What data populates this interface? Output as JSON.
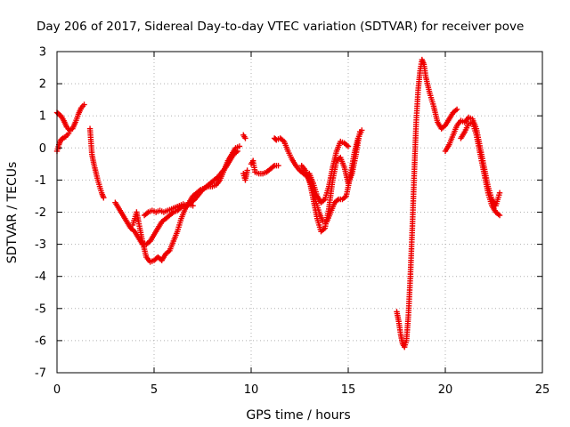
{
  "chart_data": {
    "type": "scatter",
    "title": "Day 206 of 2017, Sidereal Day-to-day VTEC variation (SDTVAR) for receiver pove",
    "xlabel": "GPS time / hours",
    "ylabel": "SDTVAR / TECUs",
    "xlim": [
      0,
      25
    ],
    "ylim": [
      -7,
      3
    ],
    "xticks": [
      0,
      5,
      10,
      15,
      20,
      25
    ],
    "yticks": [
      -7,
      -6,
      -5,
      -4,
      -3,
      -2,
      -1,
      0,
      1,
      2,
      3
    ],
    "grid": true,
    "marker": "+",
    "marker_color": "#ee0000",
    "series": [
      {
        "name": "segment-1",
        "x": [
          0.0,
          0.1,
          0.2,
          0.35,
          0.5,
          0.65,
          0.8,
          0.95,
          1.1,
          1.25,
          1.4
        ],
        "y": [
          1.1,
          1.05,
          1.0,
          0.85,
          0.65,
          0.55,
          0.6,
          0.8,
          1.05,
          1.25,
          1.35
        ]
      },
      {
        "name": "segment-2",
        "x": [
          0.0,
          0.1,
          0.2,
          0.3,
          0.45,
          0.6
        ],
        "y": [
          -0.1,
          0.1,
          0.25,
          0.3,
          0.35,
          0.45
        ]
      },
      {
        "name": "segment-3",
        "x": [
          1.7,
          1.75,
          1.8,
          1.9,
          2.0,
          2.1,
          2.2,
          2.3,
          2.4
        ],
        "y": [
          0.6,
          0.2,
          -0.2,
          -0.5,
          -0.75,
          -1.0,
          -1.2,
          -1.4,
          -1.55
        ]
      },
      {
        "name": "segment-4",
        "x": [
          3.0,
          3.2,
          3.4,
          3.6,
          3.8,
          4.0,
          4.2,
          4.4,
          4.6,
          4.8,
          5.0,
          5.2,
          5.4,
          5.6,
          5.8,
          6.0,
          6.2,
          6.4,
          6.6,
          6.8,
          7.0
        ],
        "y": [
          -1.7,
          -1.9,
          -2.1,
          -2.3,
          -2.5,
          -2.6,
          -2.8,
          -3.0,
          -3.0,
          -2.9,
          -2.7,
          -2.5,
          -2.3,
          -2.2,
          -2.1,
          -2.0,
          -1.95,
          -1.85,
          -1.8,
          -1.75,
          -1.8
        ]
      },
      {
        "name": "segment-5",
        "x": [
          3.9,
          4.0,
          4.1,
          4.2,
          4.4,
          4.6,
          4.8,
          5.0,
          5.2,
          5.4,
          5.6,
          5.8,
          6.0,
          6.2,
          6.4,
          6.6,
          6.8,
          7.0,
          7.2,
          7.4,
          7.6,
          7.8,
          8.0,
          8.2,
          8.4,
          8.6,
          8.8,
          9.0,
          9.2,
          9.4
        ],
        "y": [
          -2.4,
          -2.2,
          -2.0,
          -2.3,
          -2.9,
          -3.4,
          -3.55,
          -3.5,
          -3.4,
          -3.5,
          -3.3,
          -3.2,
          -2.9,
          -2.6,
          -2.2,
          -1.9,
          -1.7,
          -1.5,
          -1.4,
          -1.3,
          -1.25,
          -1.2,
          -1.2,
          -1.15,
          -1.0,
          -0.7,
          -0.4,
          -0.2,
          0.0,
          0.05
        ]
      },
      {
        "name": "segment-6",
        "x": [
          4.5,
          4.7,
          4.9,
          5.1,
          5.3,
          5.5,
          5.7,
          5.9,
          6.1,
          6.3,
          6.5,
          6.7,
          6.9,
          7.1,
          7.3,
          7.5,
          7.7,
          7.9,
          8.1,
          8.3,
          8.5,
          8.7,
          8.9,
          9.1,
          9.3
        ],
        "y": [
          -2.1,
          -2.0,
          -1.95,
          -2.0,
          -1.95,
          -2.0,
          -1.95,
          -1.9,
          -1.85,
          -1.8,
          -1.75,
          -1.8,
          -1.7,
          -1.6,
          -1.45,
          -1.3,
          -1.2,
          -1.1,
          -1.0,
          -0.9,
          -0.75,
          -0.6,
          -0.4,
          -0.2,
          -0.1
        ]
      },
      {
        "name": "segment-7",
        "x": [
          9.6,
          9.7
        ],
        "y": [
          0.4,
          0.3
        ]
      },
      {
        "name": "segment-8",
        "x": [
          9.6,
          9.7,
          9.8
        ],
        "y": [
          -0.8,
          -1.0,
          -0.7
        ]
      },
      {
        "name": "segment-9",
        "x": [
          10.0,
          10.1,
          10.2,
          10.4,
          10.6,
          10.8,
          11.0,
          11.2,
          11.4
        ],
        "y": [
          -0.5,
          -0.4,
          -0.75,
          -0.8,
          -0.8,
          -0.75,
          -0.65,
          -0.55,
          -0.55
        ]
      },
      {
        "name": "segment-10",
        "x": [
          11.2,
          11.3,
          11.5,
          11.7,
          11.9,
          12.1,
          12.3,
          12.5,
          12.7,
          12.9,
          13.1,
          13.3,
          13.5,
          13.7,
          13.9,
          14.1,
          14.3,
          14.5,
          14.7,
          14.9,
          15.1,
          15.3,
          15.5,
          15.7
        ],
        "y": [
          0.3,
          0.25,
          0.3,
          0.2,
          -0.1,
          -0.35,
          -0.55,
          -0.7,
          -0.8,
          -0.9,
          -1.2,
          -1.6,
          -2.0,
          -2.3,
          -2.3,
          -2.0,
          -1.7,
          -1.6,
          -1.6,
          -1.5,
          -0.9,
          -0.2,
          0.3,
          0.55
        ]
      },
      {
        "name": "segment-11",
        "x": [
          12.6,
          12.8,
          13.0,
          13.2,
          13.4,
          13.6,
          13.8,
          14.0,
          14.2,
          14.4,
          14.6,
          14.8,
          15.0,
          15.2,
          15.4,
          15.6
        ],
        "y": [
          -0.55,
          -0.7,
          -1.0,
          -1.6,
          -2.2,
          -2.6,
          -2.5,
          -1.9,
          -1.0,
          -0.4,
          -0.3,
          -0.6,
          -1.1,
          -0.8,
          -0.2,
          0.5
        ]
      },
      {
        "name": "segment-12",
        "x": [
          13.0,
          13.2,
          13.4,
          13.6,
          13.8,
          14.0,
          14.2,
          14.4,
          14.6,
          14.8,
          15.0
        ],
        "y": [
          -0.8,
          -1.1,
          -1.5,
          -1.7,
          -1.6,
          -1.2,
          -0.6,
          -0.1,
          0.2,
          0.15,
          0.05
        ]
      },
      {
        "name": "segment-13",
        "x": [
          17.5,
          17.6,
          17.7,
          17.8,
          17.9,
          18.0,
          18.1,
          18.2,
          18.3,
          18.4,
          18.5,
          18.6,
          18.7,
          18.8,
          18.9,
          19.0,
          19.2,
          19.4,
          19.6,
          19.8,
          20.0,
          20.2,
          20.4,
          20.6
        ],
        "y": [
          -5.1,
          -5.4,
          -5.8,
          -6.1,
          -6.2,
          -6.0,
          -5.2,
          -4.0,
          -2.5,
          -0.8,
          0.8,
          1.8,
          2.4,
          2.75,
          2.6,
          2.2,
          1.7,
          1.3,
          0.8,
          0.6,
          0.7,
          0.9,
          1.1,
          1.2
        ]
      },
      {
        "name": "segment-14",
        "x": [
          20.0,
          20.2,
          20.4,
          20.6,
          20.8,
          21.0,
          21.2,
          21.4,
          21.6,
          21.8,
          22.0,
          22.2,
          22.4,
          22.6,
          22.8
        ],
        "y": [
          -0.1,
          0.1,
          0.4,
          0.7,
          0.85,
          0.8,
          0.95,
          0.9,
          0.6,
          0.0,
          -0.6,
          -1.2,
          -1.6,
          -1.8,
          -1.4
        ]
      },
      {
        "name": "segment-15",
        "x": [
          20.8,
          21.0,
          21.2,
          21.4,
          21.6,
          21.8,
          22.0,
          22.2,
          22.4,
          22.6,
          22.8
        ],
        "y": [
          0.3,
          0.5,
          0.75,
          0.8,
          0.4,
          -0.2,
          -0.8,
          -1.4,
          -1.8,
          -2.0,
          -2.1
        ]
      }
    ]
  }
}
